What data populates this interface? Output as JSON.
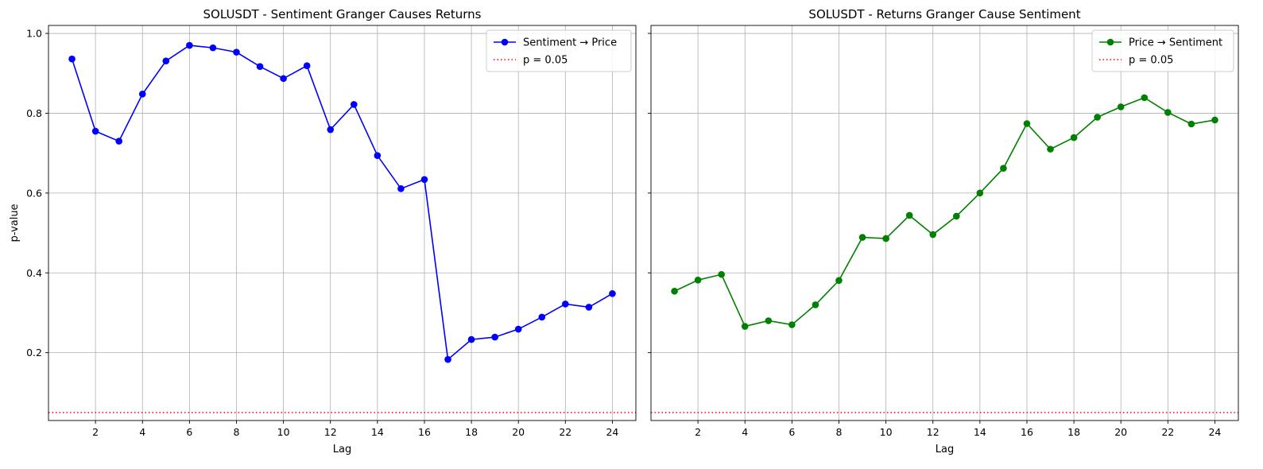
{
  "chart_data": [
    {
      "type": "line",
      "title": "SOLUSDT - Sentiment Granger Causes Returns",
      "xlabel": "Lag",
      "ylabel": "p-value",
      "xlim": [
        0,
        25
      ],
      "ylim": [
        0.03,
        1.02
      ],
      "xticks": [
        2,
        4,
        6,
        8,
        10,
        12,
        14,
        16,
        18,
        20,
        22,
        24
      ],
      "yticks": [
        0.2,
        0.4,
        0.6,
        0.8,
        1.0
      ],
      "ytick_labels": [
        "0.2",
        "0.4",
        "0.6",
        "0.8",
        "1.0"
      ],
      "grid": true,
      "legend_placement": "top-right",
      "x": [
        1,
        2,
        3,
        4,
        5,
        6,
        7,
        8,
        9,
        10,
        11,
        12,
        13,
        14,
        15,
        16,
        17,
        18,
        19,
        20,
        21,
        22,
        23,
        24
      ],
      "series": [
        {
          "name": "Sentiment → Price",
          "color": "#0000ff",
          "values": [
            0.936,
            0.755,
            0.73,
            0.848,
            0.931,
            0.97,
            0.964,
            0.953,
            0.917,
            0.887,
            0.919,
            0.759,
            0.822,
            0.694,
            0.611,
            0.634,
            0.183,
            0.233,
            0.239,
            0.259,
            0.289,
            0.322,
            0.314,
            0.348
          ]
        }
      ],
      "reference_line": {
        "label": "p = 0.05",
        "value": 0.05,
        "color": "#ff0000"
      }
    },
    {
      "type": "line",
      "title": "SOLUSDT - Returns Granger Cause Sentiment",
      "xlabel": "Lag",
      "ylabel": "",
      "xlim": [
        0,
        25
      ],
      "ylim": [
        0.03,
        1.02
      ],
      "xticks": [
        2,
        4,
        6,
        8,
        10,
        12,
        14,
        16,
        18,
        20,
        22,
        24
      ],
      "yticks": [
        0.2,
        0.4,
        0.6,
        0.8,
        1.0
      ],
      "ytick_labels": [
        "",
        "",
        "",
        "",
        ""
      ],
      "grid": true,
      "legend_placement": "top-right",
      "x": [
        1,
        2,
        3,
        4,
        5,
        6,
        7,
        8,
        9,
        10,
        11,
        12,
        13,
        14,
        15,
        16,
        17,
        18,
        19,
        20,
        21,
        22,
        23,
        24
      ],
      "series": [
        {
          "name": "Price → Sentiment",
          "color": "#008000",
          "values": [
            0.354,
            0.382,
            0.396,
            0.266,
            0.28,
            0.27,
            0.32,
            0.381,
            0.489,
            0.486,
            0.544,
            0.496,
            0.542,
            0.6,
            0.662,
            0.774,
            0.71,
            0.739,
            0.79,
            0.816,
            0.839,
            0.802,
            0.773,
            0.783
          ]
        }
      ],
      "reference_line": {
        "label": "p = 0.05",
        "value": 0.05,
        "color": "#ff0000"
      }
    }
  ]
}
